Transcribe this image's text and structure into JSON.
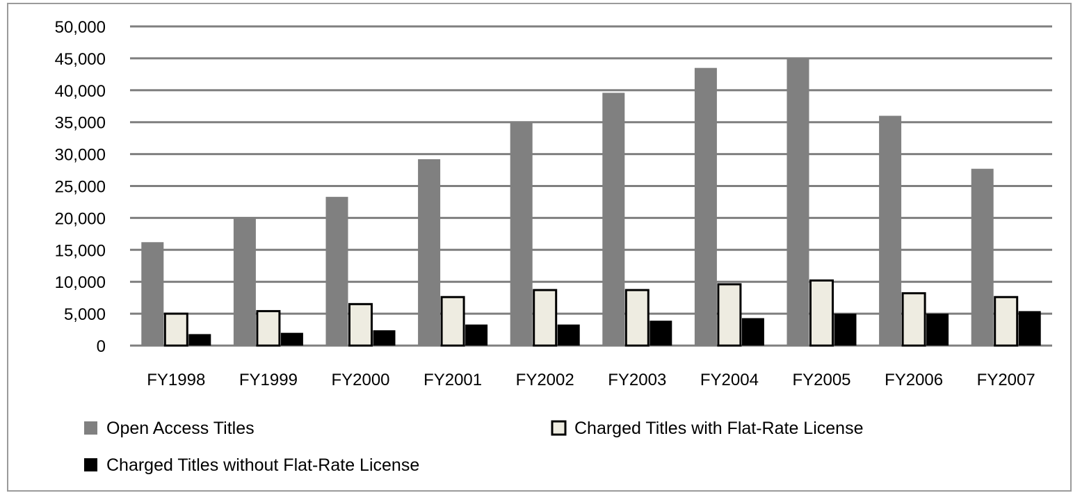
{
  "chart_data": {
    "type": "bar",
    "title": "",
    "xlabel": "",
    "ylabel": "",
    "categories": [
      "FY1998",
      "FY1999",
      "FY2000",
      "FY2001",
      "FY2002",
      "FY2003",
      "FY2004",
      "FY2005",
      "FY2006",
      "FY2007"
    ],
    "series": [
      {
        "name": "Open Access Titles",
        "color": "#808080",
        "values": [
          16200,
          20000,
          23300,
          29200,
          35000,
          39600,
          43500,
          45000,
          36000,
          27700
        ]
      },
      {
        "name": "Charged Titles with Flat-Rate License",
        "color": "#eeece1",
        "values": [
          5000,
          5400,
          6500,
          7600,
          8700,
          8700,
          9600,
          10200,
          8200,
          7600
        ]
      },
      {
        "name": "Charged Titles without Flat-Rate License",
        "color": "#000000",
        "values": [
          1800,
          2000,
          2400,
          3300,
          3300,
          3900,
          4300,
          5000,
          5000,
          5400
        ]
      }
    ],
    "ylim": [
      0,
      50000
    ],
    "yticks": [
      "0",
      "5,000",
      "10,000",
      "15,000",
      "20,000",
      "25,000",
      "30,000",
      "35,000",
      "40,000",
      "45,000",
      "50,000"
    ],
    "grid": true,
    "legend": "bottom"
  }
}
